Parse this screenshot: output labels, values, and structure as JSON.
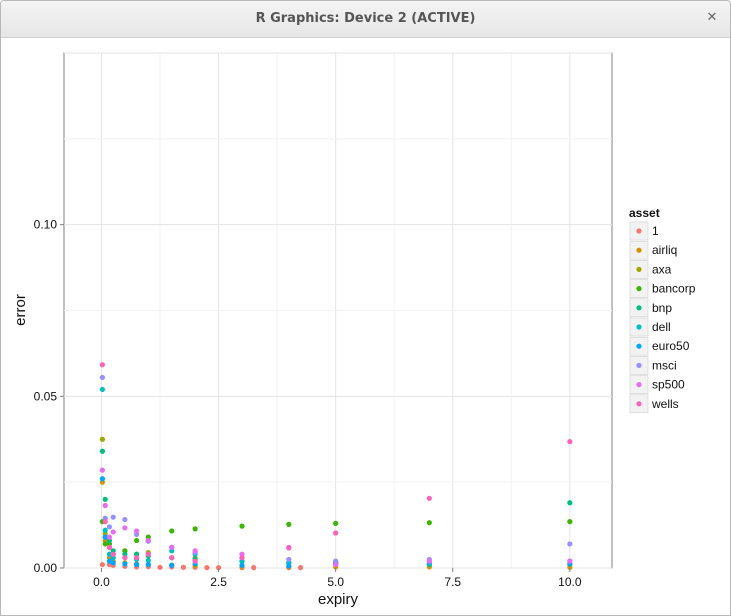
{
  "window": {
    "title": "R Graphics: Device 2 (ACTIVE)",
    "close_icon": "close-icon"
  },
  "chart_data": {
    "type": "scatter",
    "title": "",
    "xlabel": "expiry",
    "ylabel": "error",
    "xlim": [
      -0.8,
      10.9
    ],
    "ylim": [
      0,
      0.15
    ],
    "x_ticks": [
      0.0,
      2.5,
      5.0,
      7.5,
      10.0
    ],
    "x_tick_labels": [
      "0.0",
      "2.5",
      "5.0",
      "7.5",
      "10.0"
    ],
    "y_ticks": [
      0.0,
      0.05,
      0.1
    ],
    "y_tick_labels": [
      "0.00",
      "0.05",
      "0.10"
    ],
    "grid": true,
    "legend": {
      "title": "asset",
      "placement": "right"
    },
    "series": [
      {
        "name": "1",
        "color": "#F8766D",
        "points": [
          [
            0.02,
            0.001
          ],
          [
            0.08,
            0.009
          ],
          [
            0.17,
            0.001
          ],
          [
            0.25,
            0.0008
          ],
          [
            0.5,
            0.0005
          ],
          [
            0.75,
            0.0003
          ],
          [
            1.0,
            0.0004
          ],
          [
            1.25,
            0.0002
          ],
          [
            1.5,
            0.0003
          ],
          [
            1.75,
            0.0002
          ],
          [
            2.0,
            0.0002
          ],
          [
            2.25,
            0.0001
          ],
          [
            2.5,
            0.0001
          ],
          [
            3.0,
            0.0001
          ],
          [
            3.25,
            0.0001
          ],
          [
            4.0,
            0.0001
          ],
          [
            4.25,
            0.0001
          ]
        ]
      },
      {
        "name": "airliq",
        "color": "#D89000",
        "points": [
          [
            0.02,
            0.025
          ],
          [
            0.08,
            0.008
          ],
          [
            0.17,
            0.003
          ],
          [
            0.25,
            0.002
          ],
          [
            0.5,
            0.0015
          ],
          [
            0.75,
            0.0012
          ],
          [
            1.0,
            0.001
          ],
          [
            1.5,
            0.0008
          ],
          [
            2.0,
            0.0006
          ],
          [
            3.0,
            0.0004
          ],
          [
            4.0,
            0.0003
          ],
          [
            5.0,
            0.0003
          ],
          [
            7.0,
            0.0003
          ],
          [
            10.0,
            0.0002
          ]
        ]
      },
      {
        "name": "axa",
        "color": "#A3A500",
        "points": [
          [
            0.02,
            0.0375
          ],
          [
            0.08,
            0.01
          ],
          [
            0.17,
            0.006
          ],
          [
            0.25,
            0.004
          ],
          [
            0.5,
            0.005
          ],
          [
            0.75,
            0.004
          ],
          [
            1.0,
            0.0045
          ],
          [
            1.5,
            0.003
          ],
          [
            2.0,
            0.003
          ],
          [
            3.0,
            0.002
          ],
          [
            4.0,
            0.0015
          ],
          [
            5.0,
            0.0012
          ],
          [
            7.0,
            0.001
          ],
          [
            10.0,
            0.001
          ]
        ]
      },
      {
        "name": "bancorp",
        "color": "#39B600",
        "points": [
          [
            0.02,
            0.0135
          ],
          [
            0.08,
            0.007
          ],
          [
            0.17,
            0.007
          ],
          [
            0.25,
            0.004
          ],
          [
            0.5,
            0.005
          ],
          [
            0.75,
            0.008
          ],
          [
            1.0,
            0.009
          ],
          [
            1.5,
            0.0108
          ],
          [
            2.0,
            0.0114
          ],
          [
            3.0,
            0.0122
          ],
          [
            4.0,
            0.0127
          ],
          [
            5.0,
            0.013
          ],
          [
            7.0,
            0.0132
          ],
          [
            10.0,
            0.0135
          ]
        ]
      },
      {
        "name": "bnp",
        "color": "#00BF7D",
        "points": [
          [
            0.02,
            0.034
          ],
          [
            0.08,
            0.02
          ],
          [
            0.17,
            0.008
          ],
          [
            0.25,
            0.005
          ],
          [
            0.5,
            0.004
          ],
          [
            0.75,
            0.004
          ],
          [
            1.0,
            0.0035
          ],
          [
            1.5,
            0.003
          ],
          [
            2.0,
            0.0025
          ],
          [
            3.0,
            0.002
          ],
          [
            4.0,
            0.0015
          ],
          [
            5.0,
            0.0015
          ],
          [
            7.0,
            0.001
          ],
          [
            10.0,
            0.019
          ]
        ]
      },
      {
        "name": "dell",
        "color": "#00BFC4",
        "points": [
          [
            0.02,
            0.052
          ],
          [
            0.08,
            0.011
          ],
          [
            0.17,
            0.004
          ],
          [
            0.25,
            0.003
          ],
          [
            0.5,
            0.003
          ],
          [
            0.75,
            0.0025
          ],
          [
            1.0,
            0.0022
          ],
          [
            1.5,
            0.005
          ],
          [
            2.0,
            0.004
          ],
          [
            3.0,
            0.002
          ],
          [
            4.0,
            0.0015
          ],
          [
            5.0,
            0.0015
          ],
          [
            7.0,
            0.0012
          ],
          [
            10.0,
            0.002
          ]
        ]
      },
      {
        "name": "euro50",
        "color": "#00A5FF",
        "points": [
          [
            0.02,
            0.026
          ],
          [
            0.08,
            0.009
          ],
          [
            0.17,
            0.002
          ],
          [
            0.25,
            0.0015
          ],
          [
            0.5,
            0.0012
          ],
          [
            0.75,
            0.001
          ],
          [
            1.0,
            0.001
          ],
          [
            1.5,
            0.0008
          ],
          [
            2.0,
            0.0012
          ],
          [
            3.0,
            0.0008
          ],
          [
            4.0,
            0.0006
          ],
          [
            5.0,
            0.0015
          ],
          [
            7.0,
            0.0018
          ],
          [
            10.0,
            0.0012
          ]
        ]
      },
      {
        "name": "msci",
        "color": "#9590FF",
        "points": [
          [
            0.02,
            0.0555
          ],
          [
            0.08,
            0.0145
          ],
          [
            0.17,
            0.012
          ],
          [
            0.25,
            0.0148
          ],
          [
            0.5,
            0.0141
          ],
          [
            0.75,
            0.0098
          ],
          [
            1.0,
            0.0078
          ],
          [
            1.5,
            0.006
          ],
          [
            2.0,
            0.0045
          ],
          [
            3.0,
            0.003
          ],
          [
            4.0,
            0.0025
          ],
          [
            5.0,
            0.002
          ],
          [
            7.0,
            0.0025
          ],
          [
            10.0,
            0.007
          ]
        ]
      },
      {
        "name": "sp500",
        "color": "#E76BF3",
        "points": [
          [
            0.02,
            0.0285
          ],
          [
            0.08,
            0.0182
          ],
          [
            0.17,
            0.009
          ],
          [
            0.25,
            0.0105
          ],
          [
            0.5,
            0.0117
          ],
          [
            0.75,
            0.0108
          ],
          [
            1.0,
            0.008
          ],
          [
            1.5,
            0.006
          ],
          [
            2.0,
            0.005
          ],
          [
            3.0,
            0.004
          ],
          [
            4.0,
            0.006
          ],
          [
            5.0,
            0.001
          ],
          [
            7.0,
            0.002
          ],
          [
            10.0,
            0.002
          ]
        ]
      },
      {
        "name": "wells",
        "color": "#FF62BC",
        "points": [
          [
            0.02,
            0.0592
          ],
          [
            0.08,
            0.0135
          ],
          [
            0.17,
            0.006
          ],
          [
            0.25,
            0.004
          ],
          [
            0.5,
            0.003
          ],
          [
            0.75,
            0.003
          ],
          [
            1.0,
            0.004
          ],
          [
            1.5,
            0.003
          ],
          [
            2.0,
            0.002
          ],
          [
            3.0,
            0.003
          ],
          [
            4.0,
            0.0058
          ],
          [
            5.0,
            0.0102
          ],
          [
            7.0,
            0.0203
          ],
          [
            10.0,
            0.0368
          ]
        ]
      }
    ]
  }
}
